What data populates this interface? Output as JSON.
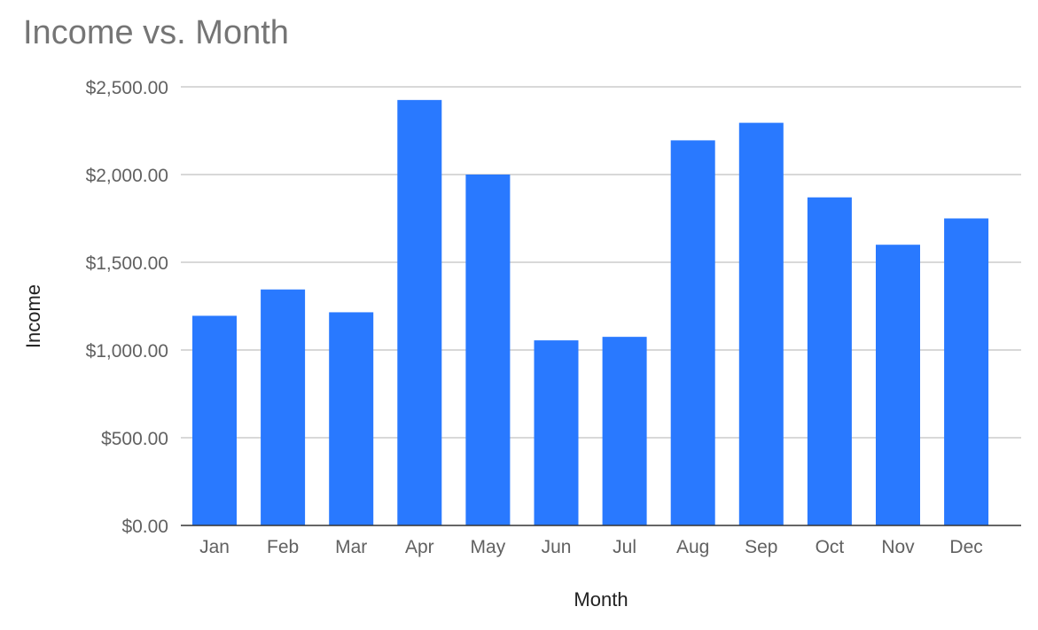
{
  "chart_data": {
    "type": "bar",
    "title": "Income vs. Month",
    "xlabel": "Month",
    "ylabel": "Income",
    "categories": [
      "Jan",
      "Feb",
      "Mar",
      "Apr",
      "May",
      "Jun",
      "Jul",
      "Aug",
      "Sep",
      "Oct",
      "Nov",
      "Dec"
    ],
    "series": [
      {
        "values": [
          1195,
          1345,
          1215,
          2425,
          2000,
          1055,
          1075,
          2195,
          2295,
          1870,
          1600,
          1750
        ]
      }
    ],
    "ylim": [
      0,
      2500
    ],
    "yticks": [
      0,
      500,
      1000,
      1500,
      2000,
      2500
    ],
    "ytick_labels": [
      "$0.00",
      "$500.00",
      "$1,000.00",
      "$1,500.00",
      "$2,000.00",
      "$2,500.00"
    ],
    "grid": true,
    "legend": "none",
    "colors": {
      "bar": "#2979ff",
      "grid": "#cccccc",
      "axis": "#333333",
      "tick_text": "#616161",
      "title_text": "#757575",
      "axis_title_text": "#222222"
    }
  }
}
